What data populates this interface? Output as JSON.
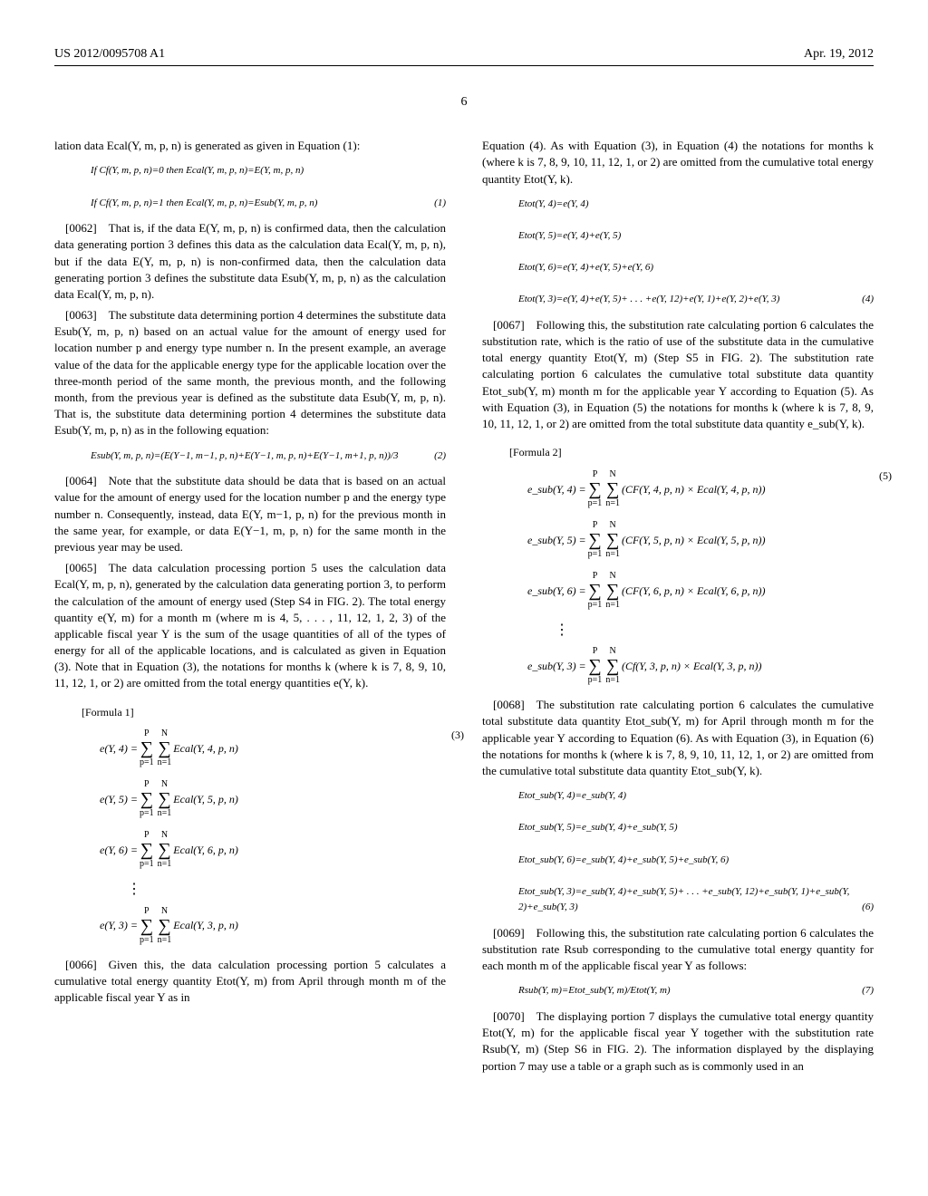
{
  "header": {
    "left": "US 2012/0095708 A1",
    "right": "Apr. 19, 2012"
  },
  "page_number": "6",
  "col1": {
    "p1": "lation data Ecal(Y, m, p, n) is generated as given in Equation (1):",
    "eq1a": "If Cf(Y, m, p, n)=0 then Ecal(Y, m, p, n)=E(Y, m, p, n)",
    "eq1b": "If Cf(Y, m, p, n)=1 then Ecal(Y, m, p, n)=Esub(Y, m, p, n)",
    "eq1_num": "(1)",
    "p2": "[0062] That is, if the data E(Y, m, p, n) is confirmed data, then the calculation data generating portion 3 defines this data as the calculation data Ecal(Y, m, p, n), but if the data E(Y, m, p, n) is non-confirmed data, then the calculation data generating portion 3 defines the substitute data Esub(Y, m, p, n) as the calculation data Ecal(Y, m, p, n).",
    "p3": "[0063] The substitute data determining portion 4 determines the substitute data Esub(Y, m, p, n) based on an actual value for the amount of energy used for location number p and energy type number n. In the present example, an average value of the data for the applicable energy type for the applicable location over the three-month period of the same month, the previous month, and the following month, from the previous year is defined as the substitute data Esub(Y, m, p, n). That is, the substitute data determining portion 4 determines the substitute data Esub(Y, m, p, n) as in the following equation:",
    "eq2": "Esub(Y, m, p, n)=(E(Y−1, m−1, p, n)+E(Y−1, m, p, n)+E(Y−1, m+1, p, n))/3",
    "eq2_num": "(2)",
    "p4": "[0064] Note that the substitute data should be data that is based on an actual value for the amount of energy used for the location number p and the energy type number n. Consequently, instead, data E(Y, m−1, p, n) for the previous month in the same year, for example, or data E(Y−1, m, p, n) for the same month in the previous year may be used.",
    "p5": "[0065] The data calculation processing portion 5 uses the calculation data Ecal(Y, m, p, n), generated by the calculation data generating portion 3, to perform the calculation of the amount of energy used (Step S4 in FIG. 2). The total energy quantity e(Y, m) for a month m (where m is 4, 5, . . . , 11, 12, 1, 2, 3) of the applicable fiscal year Y is the sum of the usage quantities of all of the types of energy for all of the applicable locations, and is calculated as given in Equation (3). Note that in Equation (3), the notations for months k (where k is 7, 8, 9, 10, 11, 12, 1, or 2) are omitted from the total energy quantities e(Y, k).",
    "formula1_label": "[Formula 1]",
    "eq3_num": "(3)",
    "math_eY4_lhs": "e(Y, 4) =",
    "math_eY4_rhs": "Ecal(Y, 4, p, n)",
    "math_eY5_lhs": "e(Y, 5) =",
    "math_eY5_rhs": "Ecal(Y, 5, p, n)",
    "math_eY6_lhs": "e(Y, 6) =",
    "math_eY6_rhs": "Ecal(Y, 6, p, n)",
    "math_eY3_lhs": "e(Y, 3) =",
    "math_eY3_rhs": "Ecal(Y, 3, p, n)",
    "sum_upper1": "P",
    "sum_lower1": "p=1",
    "sum_upper2": "N",
    "sum_lower2": "n=1",
    "p6": "[0066] Given this, the data calculation processing portion 5 calculates a cumulative total energy quantity Etot(Y, m) from April through month m of the applicable fiscal year Y as in"
  },
  "col2": {
    "p1": "Equation (4). As with Equation (3), in Equation (4) the notations for months k (where k is 7, 8, 9, 10, 11, 12, 1, or 2) are omitted from the cumulative total energy quantity Etot(Y, k).",
    "eq4a": "Etot(Y, 4)=e(Y, 4)",
    "eq4b": "Etot(Y, 5)=e(Y, 4)+e(Y, 5)",
    "eq4c": "Etot(Y, 6)=e(Y, 4)+e(Y, 5)+e(Y, 6)",
    "eq4d": "Etot(Y, 3)=e(Y, 4)+e(Y, 5)+ . . . +e(Y, 12)+e(Y, 1)+e(Y, 2)+e(Y, 3)",
    "eq4_num": "(4)",
    "p2": "[0067] Following this, the substitution rate calculating portion 6 calculates the substitution rate, which is the ratio of use of the substitute data in the cumulative total energy quantity Etot(Y, m) (Step S5 in FIG. 2). The substitution rate calculating portion 6 calculates the cumulative total substitute data quantity Etot_sub(Y, m) month m for the applicable year Y according to Equation (5). As with Equation (3), in Equation (5) the notations for months k (where k is 7, 8, 9, 10, 11, 12, 1, or 2) are omitted from the total substitute data quantity e_sub(Y, k).",
    "formula2_label": "[Formula 2]",
    "eq5_num": "(5)",
    "math_es4_lhs": "e_sub(Y, 4) =",
    "math_es4_rhs": "(CF(Y, 4, p, n) × Ecal(Y, 4, p, n))",
    "math_es5_lhs": "e_sub(Y, 5) =",
    "math_es5_rhs": "(CF(Y, 5, p, n) × Ecal(Y, 5, p, n))",
    "math_es6_lhs": "e_sub(Y, 6) =",
    "math_es6_rhs": "(CF(Y, 6, p, n) × Ecal(Y, 6, p, n))",
    "math_es3_lhs": "e_sub(Y, 3) =",
    "math_es3_rhs": "(Cf(Y, 3, p, n) × Ecal(Y, 3, p, n))",
    "p3": "[0068] The substitution rate calculating portion 6 calculates the cumulative total substitute data quantity Etot_sub(Y, m) for April through month m for the applicable year Y according to Equation (6). As with Equation (3), in Equation (6) the notations for months k (where k is 7, 8, 9, 10, 11, 12, 1, or 2) are omitted from the cumulative total substitute data quantity Etot_sub(Y, k).",
    "eq6a": "Etot_sub(Y, 4)=e_sub(Y, 4)",
    "eq6b": "Etot_sub(Y, 5)=e_sub(Y, 4)+e_sub(Y, 5)",
    "eq6c": "Etot_sub(Y, 6)=e_sub(Y, 4)+e_sub(Y, 5)+e_sub(Y, 6)",
    "eq6d": "Etot_sub(Y, 3)=e_sub(Y, 4)+e_sub(Y, 5)+ . . . +e_sub(Y, 12)+e_sub(Y, 1)+e_sub(Y, 2)+e_sub(Y, 3)",
    "eq6_num": "(6)",
    "p4": "[0069] Following this, the substitution rate calculating portion 6 calculates the substitution rate Rsub corresponding to the cumulative total energy quantity for each month m of the applicable fiscal year Y as follows:",
    "eq7": "Rsub(Y, m)=Etot_sub(Y, m)/Etot(Y, m)",
    "eq7_num": "(7)",
    "p5": "[0070] The displaying portion 7 displays the cumulative total energy quantity Etot(Y, m) for the applicable fiscal year Y together with the substitution rate Rsub(Y, m) (Step S6 in FIG. 2). The information displayed by the displaying portion 7 may use a table or a graph such as is commonly used in an"
  },
  "vdots": "⋮"
}
